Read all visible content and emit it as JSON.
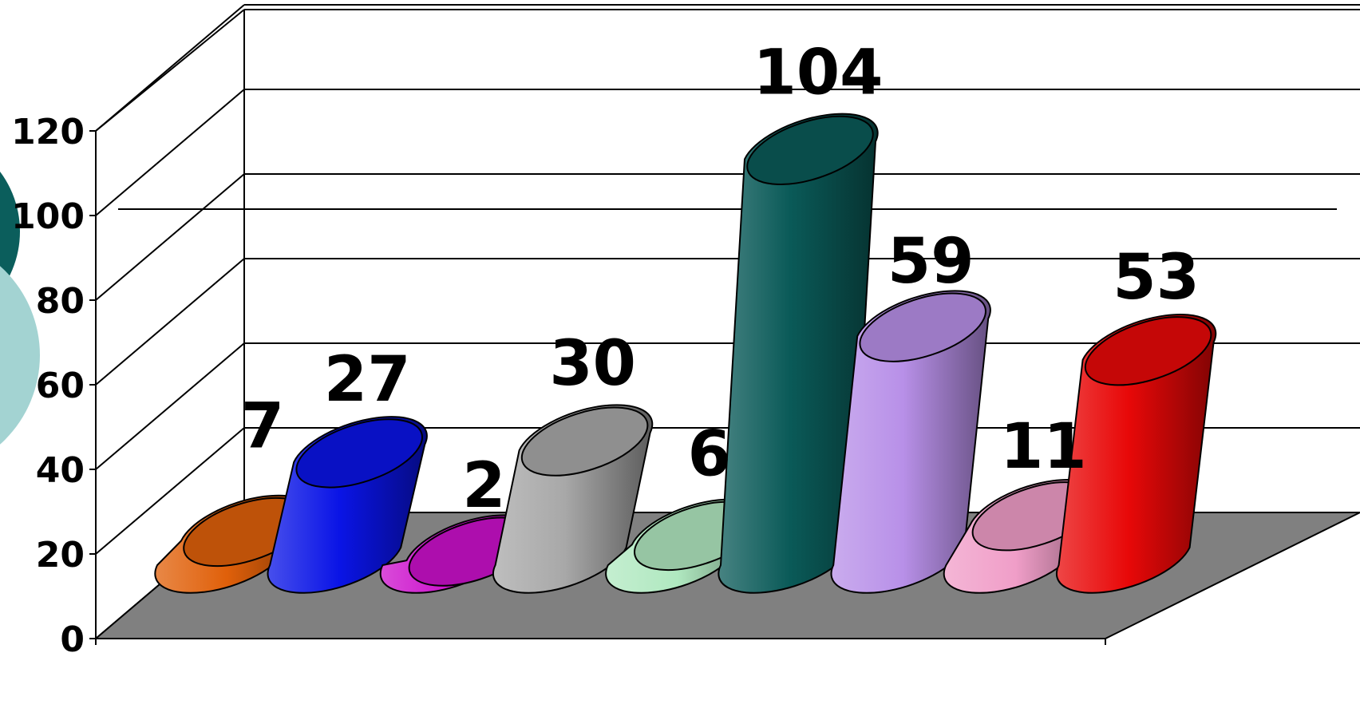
{
  "chart_data": {
    "type": "bar",
    "style": "3d-cylinder",
    "categories": [
      "",
      "",
      "",
      "",
      "",
      "",
      "",
      "",
      ""
    ],
    "values": [
      7,
      27,
      2,
      30,
      6,
      104,
      59,
      11,
      53
    ],
    "data_labels": [
      "7",
      "27",
      "2",
      "30",
      "6",
      "104",
      "59",
      "11",
      "53"
    ],
    "colors": [
      "#e0600a",
      "#0a14e6",
      "#cc10cc",
      "#a8a8a8",
      "#b0e8c0",
      "#0a5a58",
      "#b890e8",
      "#f09ec8",
      "#e80808"
    ],
    "title": "",
    "xlabel": "",
    "ylabel": "",
    "ylim": [
      0,
      120
    ],
    "yticks": [
      "0",
      "20",
      "40",
      "60",
      "80",
      "100",
      "120"
    ],
    "grid": true,
    "legend": "none",
    "floor_color": "#808080"
  }
}
